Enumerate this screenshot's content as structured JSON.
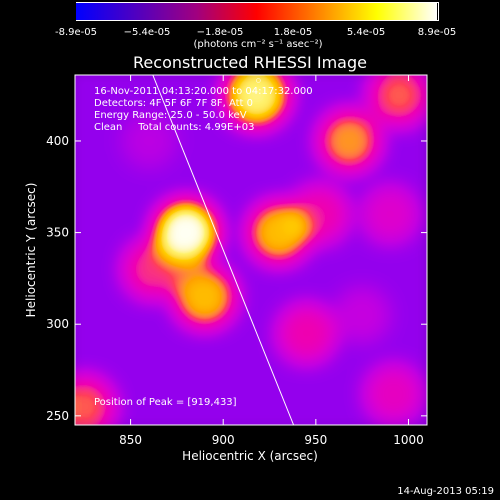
{
  "colorbar": {
    "ticks": [
      "-8.9e-05",
      "−5.4e-05",
      "−1.8e-05",
      "1.8e-05",
      "5.4e-05",
      "8.9e-05"
    ],
    "tick_values": [
      -8.9e-05,
      -5.4e-05,
      -1.8e-05,
      1.8e-05,
      5.4e-05,
      8.9e-05
    ],
    "unit": "(photons cm⁻² s⁻¹ asec⁻²)",
    "colors": [
      "#0000ff",
      "#5000c0",
      "#a00080",
      "#ff0000",
      "#ff8000",
      "#ffff00",
      "#ffffff"
    ]
  },
  "chart_data": {
    "type": "heatmap",
    "title": "Reconstructed RHESSI Image",
    "xlabel": "Heliocentric X (arcsec)",
    "ylabel": "Heliocentric Y (arcsec)",
    "xlim": [
      820,
      1010
    ],
    "ylim": [
      245,
      436
    ],
    "xticks": [
      850,
      900,
      950,
      1000
    ],
    "yticks": [
      250,
      300,
      350,
      400
    ],
    "info_lines": [
      "16-Nov-2011 04:13:20.000 to 04:17:32.000",
      "Detectors: 4F 5F 6F 7F 8F, Att 0",
      "Energy Range: 25.0 - 50.0 keV",
      "Clean     Total counts: 4.99E+03"
    ],
    "peak_label": "Position of Peak = [919,433]",
    "peak": [
      919,
      433
    ],
    "total_counts": 4990,
    "energy_range_keV": [
      25.0,
      50.0
    ],
    "limb_line": [
      [
        862,
        436
      ],
      [
        938,
        245
      ]
    ],
    "sources": [
      {
        "x": 880,
        "y": 350,
        "amp": 1.0
      },
      {
        "x": 890,
        "y": 315,
        "amp": 0.85
      },
      {
        "x": 862,
        "y": 330,
        "amp": 0.7
      },
      {
        "x": 930,
        "y": 350,
        "amp": 0.85
      },
      {
        "x": 952,
        "y": 360,
        "amp": 0.65
      },
      {
        "x": 918,
        "y": 425,
        "amp": 0.95
      },
      {
        "x": 968,
        "y": 400,
        "amp": 0.8
      },
      {
        "x": 995,
        "y": 425,
        "amp": 0.75
      },
      {
        "x": 990,
        "y": 360,
        "amp": 0.55
      },
      {
        "x": 825,
        "y": 255,
        "amp": 0.75
      },
      {
        "x": 945,
        "y": 295,
        "amp": 0.65
      },
      {
        "x": 992,
        "y": 262,
        "amp": 0.6
      },
      {
        "x": 975,
        "y": 305,
        "amp": 0.4
      },
      {
        "x": 860,
        "y": 400,
        "amp": 0.35
      }
    ]
  },
  "footer_date": "14-Aug-2013 05:19"
}
